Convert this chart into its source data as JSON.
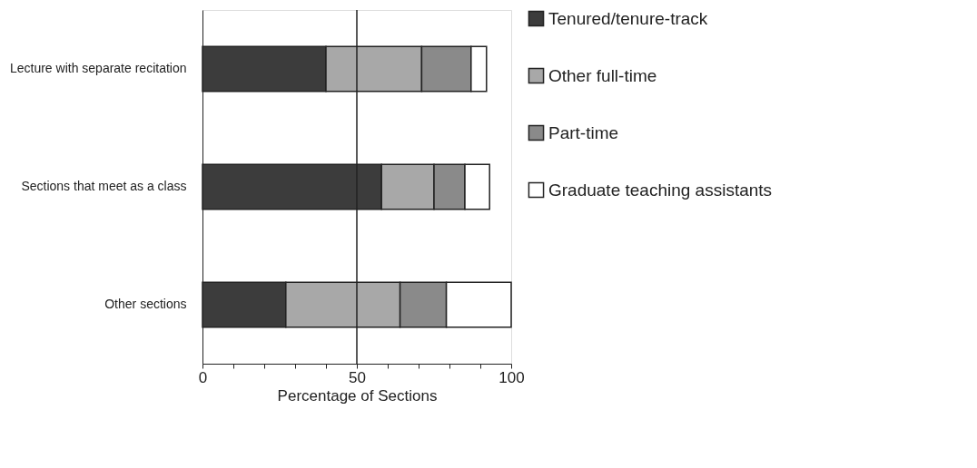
{
  "chart_data": {
    "type": "bar",
    "orientation": "horizontal",
    "stacked": true,
    "xlabel": "Percentage of Sections",
    "categories": [
      "Lecture with separate recitation",
      "Sections that meet as a class",
      "Other sections"
    ],
    "series": [
      {
        "name": "Tenured/tenure-track",
        "color": "#3c3c3c",
        "values": [
          40,
          58,
          27
        ]
      },
      {
        "name": "Other full-time",
        "color": "#a8a8a8",
        "values": [
          31,
          17,
          37
        ]
      },
      {
        "name": "Part-time",
        "color": "#8a8a8a",
        "values": [
          16,
          10,
          15
        ]
      },
      {
        "name": "Graduate teaching assistants",
        "color": "#ffffff",
        "values": [
          5,
          8,
          21
        ]
      }
    ],
    "xlim": [
      0,
      100
    ],
    "xticks": [
      0,
      {
        "value": 10,
        "label": null
      },
      {
        "value": 20,
        "label": null
      },
      {
        "value": 30,
        "label": null
      },
      {
        "value": 40,
        "label": null
      },
      50,
      {
        "value": 60,
        "label": null
      },
      {
        "value": 70,
        "label": null
      },
      {
        "value": 80,
        "label": null
      },
      {
        "value": 90,
        "label": null
      },
      100
    ],
    "ref_lines": [
      {
        "axis": "x",
        "value": 50
      }
    ],
    "legend": "right"
  }
}
